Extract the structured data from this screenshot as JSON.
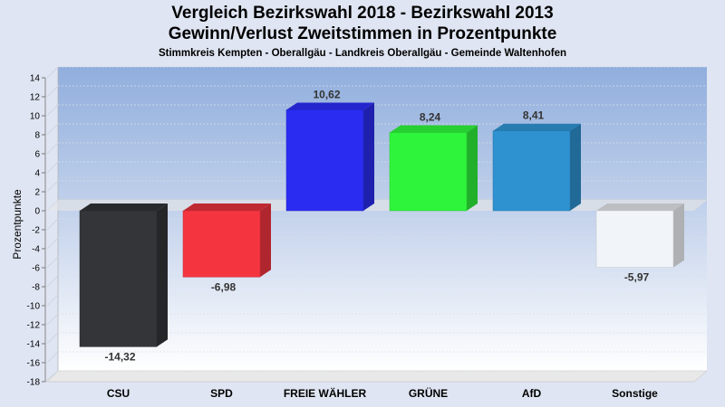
{
  "title": "Vergleich Bezirkswahl 2018 - Bezirkswahl 2013",
  "subtitle": "Gewinn/Verlust Zweitstimmen in Prozentpunkte",
  "subsubtitle": "Stimmkreis Kempten - Oberallgäu - Landkreis Oberallgäu - Gemeinde Waltenhofen",
  "chart_data": {
    "type": "bar",
    "categories": [
      "CSU",
      "SPD",
      "FREIE WÄHLER",
      "GRÜNE",
      "AfD",
      "Sonstige"
    ],
    "values": [
      -14.32,
      -6.98,
      10.62,
      8.24,
      8.41,
      -5.97
    ],
    "value_labels": [
      "-14,32",
      "-6,98",
      "10,62",
      "8,24",
      "8,41",
      "-5,97"
    ],
    "colors": [
      "#333538",
      "#f43540",
      "#2b2cf2",
      "#2ff43c",
      "#2e92d0",
      "#f1f4f9"
    ],
    "ylabel": "Prozentpunkte",
    "xlabel": "",
    "ylim": [
      -18,
      14
    ],
    "yticks": [
      14,
      12,
      10,
      8,
      6,
      4,
      2,
      0,
      -2,
      -4,
      -6,
      -8,
      -10,
      -12,
      -14,
      -16,
      -18
    ],
    "grid": true,
    "legend": "none"
  }
}
